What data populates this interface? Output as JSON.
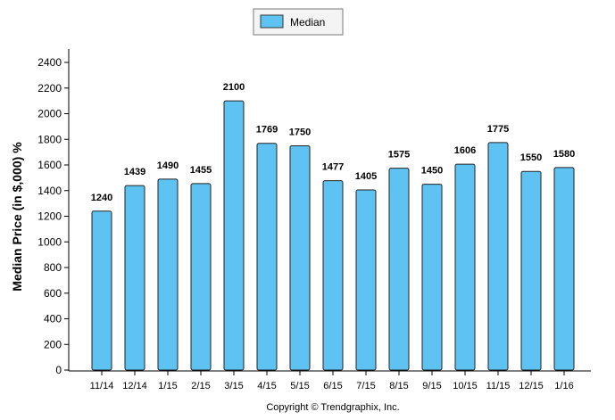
{
  "chart_data": {
    "type": "bar",
    "categories": [
      "11/14",
      "12/14",
      "1/15",
      "2/15",
      "3/15",
      "4/15",
      "5/15",
      "6/15",
      "7/15",
      "8/15",
      "9/15",
      "10/15",
      "11/15",
      "12/15",
      "1/16"
    ],
    "series": [
      {
        "name": "Median",
        "values": [
          1240,
          1439,
          1490,
          1455,
          2100,
          1769,
          1750,
          1477,
          1405,
          1575,
          1450,
          1606,
          1775,
          1550,
          1580
        ]
      }
    ],
    "value_labels": [
      "1240",
      "1439",
      "1490",
      "1455",
      "2100",
      "1769",
      "1750",
      "1477",
      "1405",
      "1575",
      "1450",
      "1606",
      "1775",
      "1550",
      "1580"
    ],
    "ylabel": "Median Price (in $,000) %",
    "ylim": [
      0,
      2400
    ],
    "yticks": [
      "0",
      "200",
      "400",
      "600",
      "800",
      "1000",
      "1200",
      "1400",
      "1600",
      "1800",
      "2000",
      "2200",
      "2400"
    ],
    "grid": false,
    "legend_position": "top-center",
    "bar_color": "#5ec3f2",
    "footer": "Copyright © Trendgraphix, Inc."
  }
}
